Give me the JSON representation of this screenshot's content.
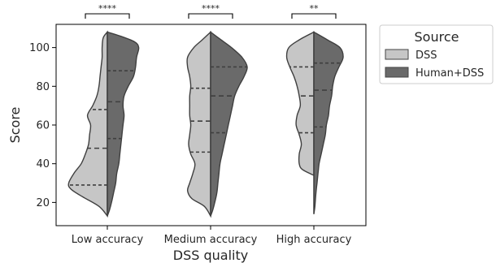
{
  "chart_data": {
    "type": "violin",
    "split": true,
    "xlabel": "DSS quality",
    "ylabel": "Score",
    "ylim": [
      8,
      112
    ],
    "yticks": [
      20,
      40,
      60,
      80,
      100
    ],
    "categories": [
      "Low accuracy",
      "Medium accuracy",
      "High accuracy"
    ],
    "significance": [
      "****",
      "****",
      "**"
    ],
    "legend": {
      "title": "Source",
      "placement": "outside-right"
    },
    "series": [
      {
        "name": "DSS",
        "color": "#c6c6c6",
        "groups": [
          {
            "quartiles": [
              29,
              48,
              68
            ],
            "profile": [
              [
                13,
                0
              ],
              [
                18,
                0.08
              ],
              [
                23,
                0.24
              ],
              [
                27,
                0.35
              ],
              [
                30,
                0.37
              ],
              [
                35,
                0.32
              ],
              [
                40,
                0.25
              ],
              [
                45,
                0.21
              ],
              [
                50,
                0.18
              ],
              [
                55,
                0.17
              ],
              [
                60,
                0.16
              ],
              [
                65,
                0.19
              ],
              [
                70,
                0.14
              ],
              [
                75,
                0.1
              ],
              [
                80,
                0.08
              ],
              [
                85,
                0.07
              ],
              [
                90,
                0.06
              ],
              [
                95,
                0.05
              ],
              [
                100,
                0.05
              ],
              [
                105,
                0.04
              ],
              [
                108,
                0
              ]
            ]
          },
          {
            "quartiles": [
              46,
              62,
              79
            ],
            "profile": [
              [
                13,
                0
              ],
              [
                18,
                0.06
              ],
              [
                22,
                0.18
              ],
              [
                26,
                0.22
              ],
              [
                30,
                0.2
              ],
              [
                35,
                0.17
              ],
              [
                40,
                0.15
              ],
              [
                45,
                0.19
              ],
              [
                50,
                0.21
              ],
              [
                55,
                0.2
              ],
              [
                60,
                0.19
              ],
              [
                65,
                0.2
              ],
              [
                70,
                0.2
              ],
              [
                75,
                0.2
              ],
              [
                80,
                0.19
              ],
              [
                85,
                0.2
              ],
              [
                90,
                0.22
              ],
              [
                95,
                0.22
              ],
              [
                100,
                0.16
              ],
              [
                104,
                0.08
              ],
              [
                108,
                0
              ]
            ]
          },
          {
            "quartiles": [
              56,
              75,
              90
            ],
            "profile": [
              [
                34,
                0
              ],
              [
                37,
                0.11
              ],
              [
                40,
                0.14
              ],
              [
                45,
                0.14
              ],
              [
                50,
                0.12
              ],
              [
                55,
                0.14
              ],
              [
                60,
                0.17
              ],
              [
                65,
                0.16
              ],
              [
                70,
                0.13
              ],
              [
                75,
                0.14
              ],
              [
                80,
                0.16
              ],
              [
                85,
                0.19
              ],
              [
                90,
                0.23
              ],
              [
                95,
                0.26
              ],
              [
                100,
                0.24
              ],
              [
                104,
                0.14
              ],
              [
                108,
                0
              ]
            ]
          }
        ]
      },
      {
        "name": "Human+DSS",
        "color": "#6a6a6a",
        "groups": [
          {
            "quartiles": [
              53,
              72,
              88
            ],
            "profile": [
              [
                13,
                0
              ],
              [
                16,
                0.02
              ],
              [
                20,
                0.04
              ],
              [
                25,
                0.06
              ],
              [
                30,
                0.08
              ],
              [
                35,
                0.09
              ],
              [
                40,
                0.11
              ],
              [
                45,
                0.12
              ],
              [
                50,
                0.13
              ],
              [
                55,
                0.14
              ],
              [
                60,
                0.15
              ],
              [
                65,
                0.16
              ],
              [
                70,
                0.15
              ],
              [
                75,
                0.16
              ],
              [
                80,
                0.2
              ],
              [
                85,
                0.25
              ],
              [
                90,
                0.27
              ],
              [
                95,
                0.28
              ],
              [
                100,
                0.3
              ],
              [
                103,
                0.26
              ],
              [
                106,
                0.12
              ],
              [
                108,
                0
              ]
            ]
          },
          {
            "quartiles": [
              56,
              75,
              90
            ],
            "profile": [
              [
                13,
                0
              ],
              [
                16,
                0.02
              ],
              [
                20,
                0.04
              ],
              [
                25,
                0.06
              ],
              [
                30,
                0.07
              ],
              [
                35,
                0.08
              ],
              [
                40,
                0.09
              ],
              [
                45,
                0.11
              ],
              [
                50,
                0.13
              ],
              [
                55,
                0.15
              ],
              [
                60,
                0.17
              ],
              [
                65,
                0.19
              ],
              [
                70,
                0.21
              ],
              [
                75,
                0.23
              ],
              [
                80,
                0.27
              ],
              [
                85,
                0.32
              ],
              [
                90,
                0.35
              ],
              [
                95,
                0.3
              ],
              [
                100,
                0.2
              ],
              [
                104,
                0.1
              ],
              [
                108,
                0
              ]
            ]
          },
          {
            "quartiles": [
              59,
              78,
              92
            ],
            "profile": [
              [
                14,
                0
              ],
              [
                18,
                0.01
              ],
              [
                25,
                0.02
              ],
              [
                30,
                0.03
              ],
              [
                35,
                0.04
              ],
              [
                40,
                0.05
              ],
              [
                45,
                0.07
              ],
              [
                50,
                0.09
              ],
              [
                55,
                0.11
              ],
              [
                60,
                0.12
              ],
              [
                65,
                0.14
              ],
              [
                70,
                0.15
              ],
              [
                75,
                0.17
              ],
              [
                80,
                0.18
              ],
              [
                85,
                0.2
              ],
              [
                90,
                0.24
              ],
              [
                95,
                0.28
              ],
              [
                100,
                0.25
              ],
              [
                104,
                0.13
              ],
              [
                108,
                0
              ]
            ]
          }
        ]
      }
    ]
  }
}
